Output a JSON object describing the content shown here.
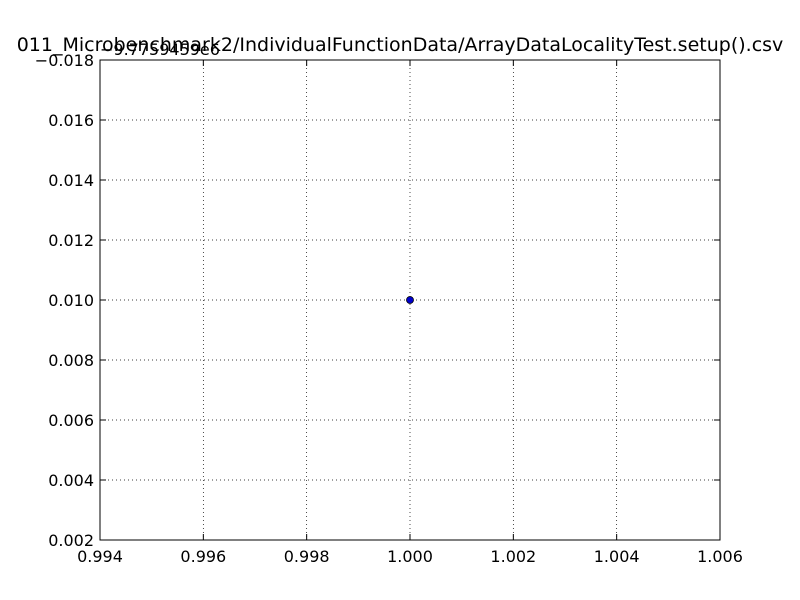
{
  "chart_data": {
    "type": "scatter",
    "title": "011_Microbenchmark2/IndividualFunctionData/ArrayDataLocalityTest.setup().csv",
    "y_offset_label": "−9.7759459e6",
    "xlabel": "",
    "ylabel": "",
    "xlim": [
      0.994,
      1.006
    ],
    "ylim": [
      0.002,
      0.018
    ],
    "x_ticks": [
      "0.994",
      "0.996",
      "0.998",
      "1.000",
      "1.002",
      "1.004",
      "1.006"
    ],
    "y_ticks": [
      "0.002",
      "0.004",
      "0.006",
      "0.008",
      "0.010",
      "0.012",
      "0.014",
      "0.016",
      "0.018"
    ],
    "y_ticks_top_label": "−0.018",
    "grid": true,
    "points": [
      {
        "x": 1.0,
        "y": 0.01
      }
    ],
    "point_color": "#0000cc"
  }
}
